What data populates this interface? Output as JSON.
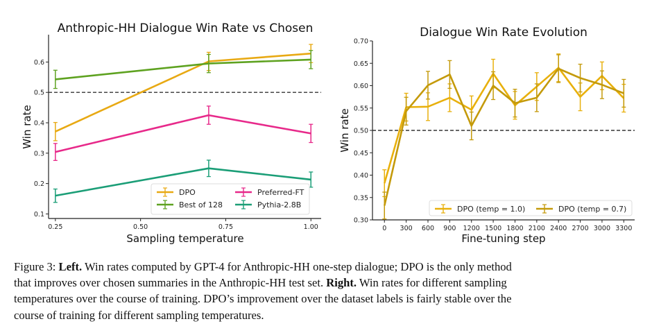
{
  "chart_data": [
    {
      "type": "line",
      "title": "Anthropic-HH Dialogue Win Rate vs Chosen",
      "xlabel": "Sampling temperature",
      "ylabel": "Win rate",
      "xlim": [
        0.23,
        1.03
      ],
      "ylim": [
        0.085,
        0.69
      ],
      "xticks": [
        0.25,
        0.5,
        0.75,
        1.0
      ],
      "xtick_labels": [
        "0.25",
        "0.50",
        "0.75",
        "1.00"
      ],
      "yticks": [
        0.1,
        0.2,
        0.3,
        0.4,
        0.5,
        0.6
      ],
      "ytick_labels": [
        "0.1",
        "0.2",
        "0.3",
        "0.4",
        "0.5",
        "0.6"
      ],
      "reference_line": 0.5,
      "x": [
        0.25,
        0.7,
        1.0
      ],
      "legend_position": "lower-right",
      "legend_columns": 2,
      "series": [
        {
          "name": "DPO",
          "color": "#E8A913",
          "values": [
            0.371,
            0.602,
            0.628
          ],
          "errors": [
            0.03,
            0.03,
            0.03
          ]
        },
        {
          "name": "Best of 128",
          "color": "#5EA220",
          "values": [
            0.543,
            0.595,
            0.608
          ],
          "errors": [
            0.03,
            0.03,
            0.03
          ]
        },
        {
          "name": "Preferred-FT",
          "color": "#E7298A",
          "values": [
            0.304,
            0.425,
            0.365
          ],
          "errors": [
            0.028,
            0.03,
            0.03
          ]
        },
        {
          "name": "Pythia-2.8B",
          "color": "#1B9E77",
          "values": [
            0.16,
            0.25,
            0.213
          ],
          "errors": [
            0.022,
            0.027,
            0.025
          ]
        }
      ]
    },
    {
      "type": "line",
      "title": "Dialogue Win Rate Evolution",
      "xlabel": "Fine-tuning step",
      "ylabel": "Win rate",
      "xlim": [
        -165,
        3450
      ],
      "ylim": [
        0.3,
        0.7
      ],
      "xticks": [
        0,
        300,
        600,
        900,
        1200,
        1500,
        1800,
        2100,
        2400,
        2700,
        3000,
        3300
      ],
      "xtick_labels": [
        "0",
        "300",
        "600",
        "900",
        "1200",
        "1500",
        "1800",
        "2100",
        "2400",
        "2700",
        "3000",
        "3300"
      ],
      "yticks": [
        0.3,
        0.35,
        0.4,
        0.45,
        0.5,
        0.55,
        0.6,
        0.65,
        0.7
      ],
      "ytick_labels": [
        "0.30",
        "0.35",
        "0.40",
        "0.45",
        "0.50",
        "0.55",
        "0.60",
        "0.65",
        "0.70"
      ],
      "reference_line": 0.5,
      "x": [
        0,
        300,
        600,
        900,
        1200,
        1500,
        1800,
        2100,
        2400,
        2700,
        3000,
        3300
      ],
      "legend_position": "lower-right",
      "legend_columns": 2,
      "series": [
        {
          "name": "DPO (temp = 1.0)",
          "color": "#E8B00C",
          "values": [
            0.382,
            0.552,
            0.553,
            0.573,
            0.546,
            0.627,
            0.556,
            0.598,
            0.64,
            0.575,
            0.622,
            0.572
          ],
          "errors": [
            0.03,
            0.031,
            0.031,
            0.031,
            0.031,
            0.032,
            0.031,
            0.031,
            0.031,
            0.031,
            0.031,
            0.031
          ]
        },
        {
          "name": "DPO (temp = 0.7)",
          "color": "#C49A0A",
          "values": [
            0.332,
            0.543,
            0.601,
            0.625,
            0.51,
            0.6,
            0.561,
            0.573,
            0.638,
            0.617,
            0.602,
            0.583
          ],
          "errors": [
            0.03,
            0.031,
            0.031,
            0.031,
            0.031,
            0.031,
            0.031,
            0.031,
            0.031,
            0.031,
            0.031,
            0.031
          ]
        }
      ]
    }
  ],
  "caption": {
    "prefix": "Figure 3: ",
    "left_bold": "Left.",
    "line1_rest": " Win rates computed by GPT-4 for Anthropic-HH one-step dialogue; DPO is the only method",
    "line2_start": "that improves over chosen summaries in the Anthropic-HH test set. ",
    "right_bold": "Right.",
    "line2_rest": " Win rates for different sampling",
    "line3": "temperatures over the course of training. DPO’s improvement over the dataset labels is fairly stable over the",
    "line4": "course of training for different sampling temperatures."
  }
}
